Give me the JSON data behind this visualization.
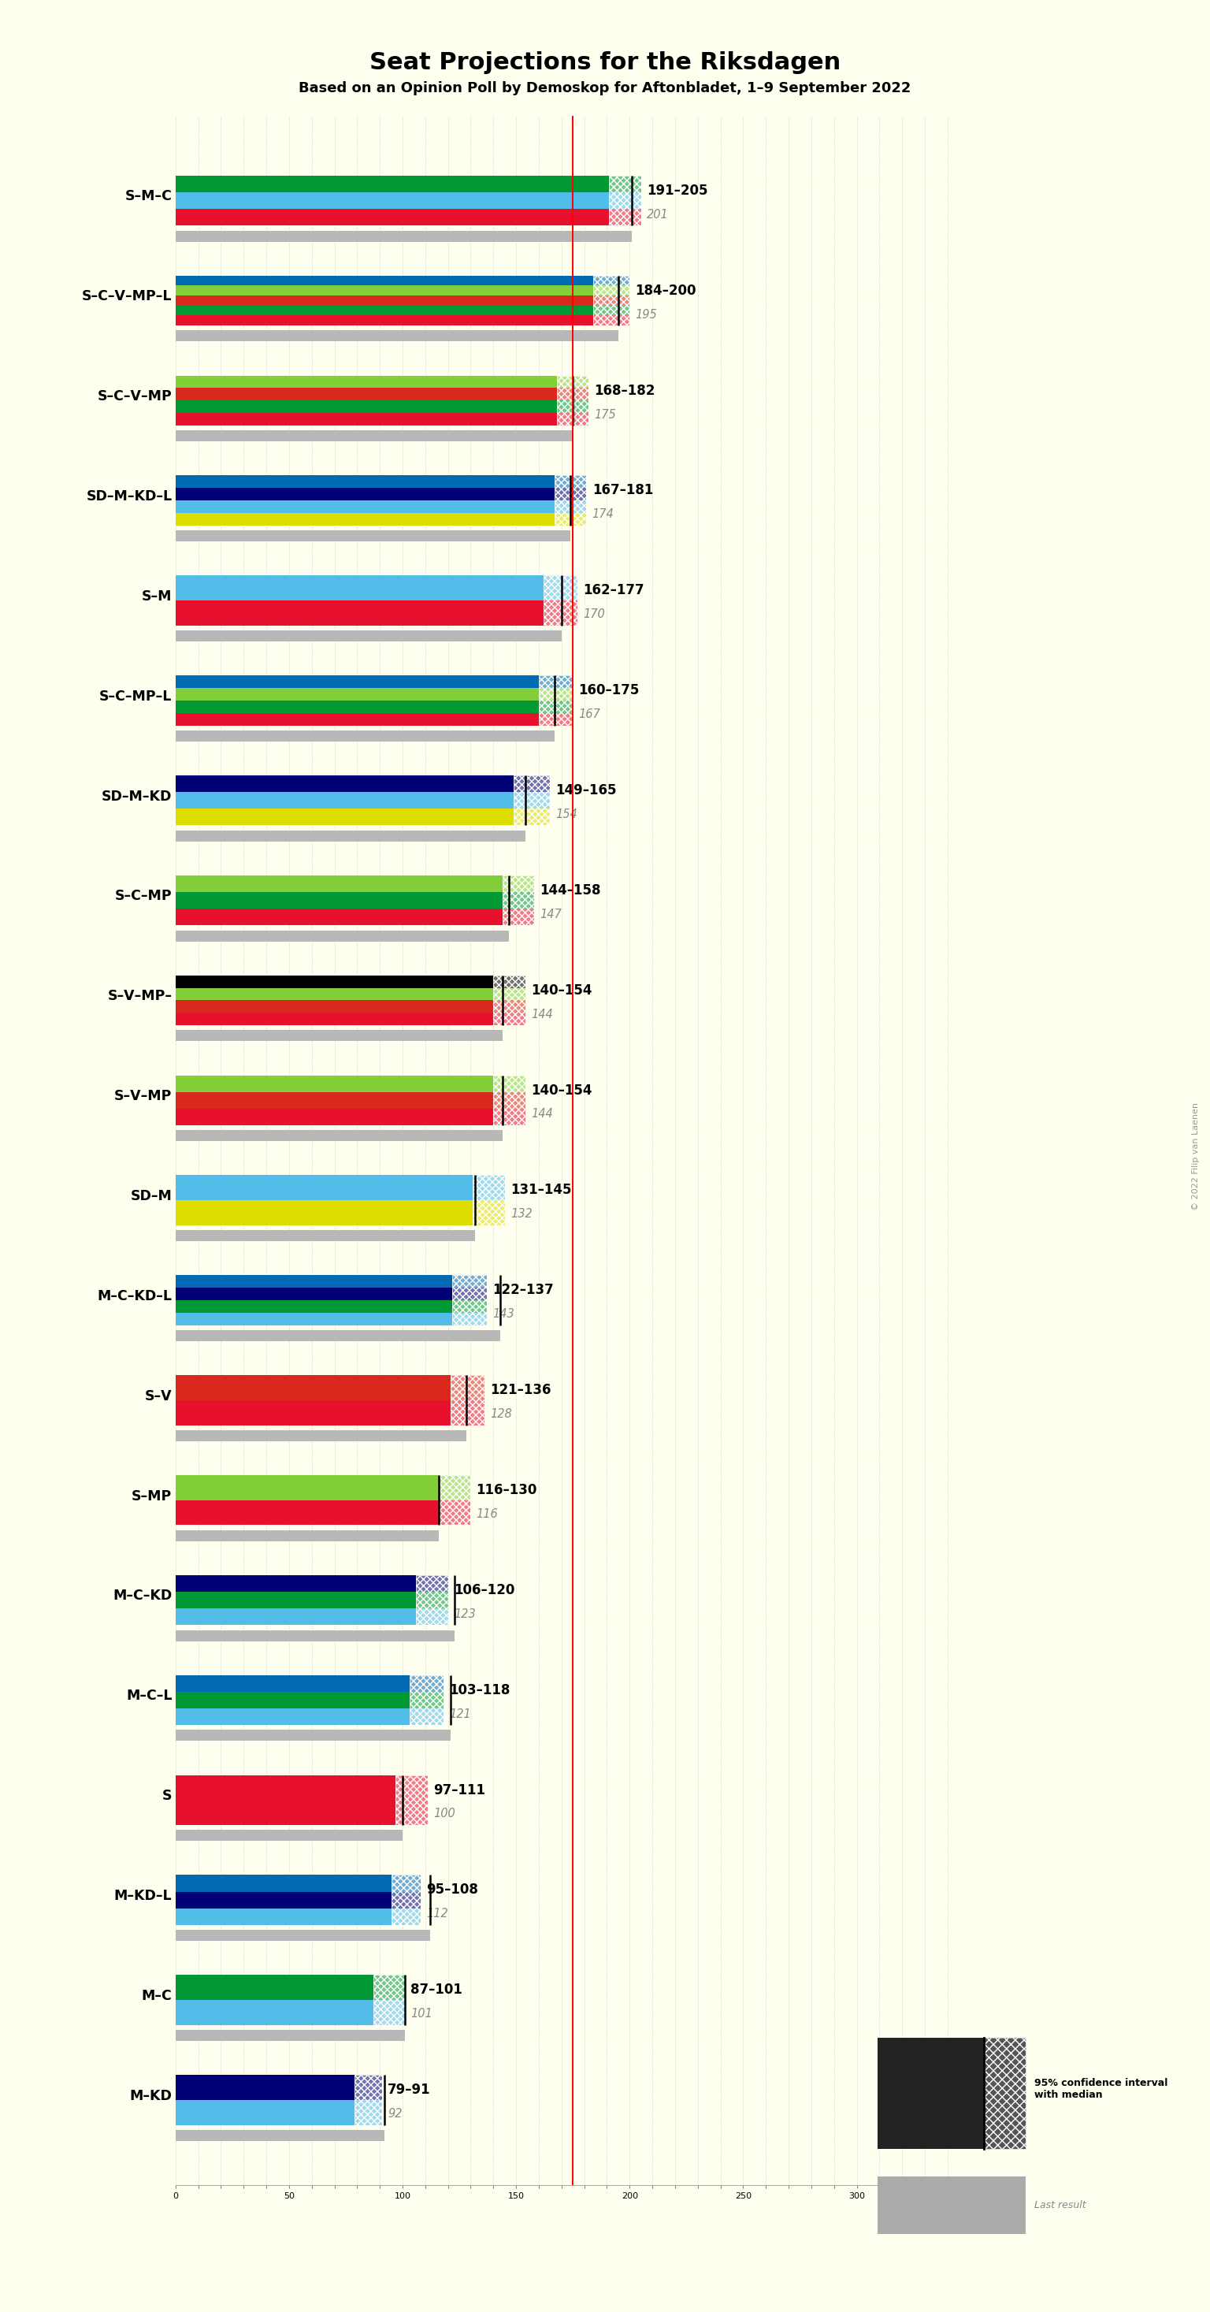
{
  "title": "Seat Projections for the Riksdagen",
  "subtitle": "Based on an Opinion Poll by Demoskop for Aftonbladet, 1–9 September 2022",
  "copyright": "© 2022 Filip van Laenen",
  "bg": "#fffff0",
  "majority": 175,
  "xlim_max": 349,
  "coalitions": [
    {
      "label": "S–M–C",
      "underline": false,
      "ci_low": 191,
      "ci_high": 205,
      "median": 201,
      "last": 201,
      "colors": [
        "#E8112d",
        "#52BDE8",
        "#009933"
      ]
    },
    {
      "label": "S–C–V–MP–L",
      "underline": false,
      "ci_low": 184,
      "ci_high": 200,
      "median": 195,
      "last": 195,
      "colors": [
        "#E8112d",
        "#009933",
        "#DA291C",
        "#83CF39",
        "#006AB3"
      ]
    },
    {
      "label": "S–C–V–MP",
      "underline": true,
      "ci_low": 168,
      "ci_high": 182,
      "median": 175,
      "last": 175,
      "colors": [
        "#E8112d",
        "#009933",
        "#DA291C",
        "#83CF39"
      ]
    },
    {
      "label": "SD–M–KD–L",
      "underline": false,
      "ci_low": 167,
      "ci_high": 181,
      "median": 174,
      "last": 174,
      "colors": [
        "#DDDD00",
        "#52BDE8",
        "#000077",
        "#006AB3"
      ]
    },
    {
      "label": "S–M",
      "underline": false,
      "ci_low": 162,
      "ci_high": 177,
      "median": 170,
      "last": 170,
      "colors": [
        "#E8112d",
        "#52BDE8"
      ]
    },
    {
      "label": "S–C–MP–L",
      "underline": false,
      "ci_low": 160,
      "ci_high": 175,
      "median": 167,
      "last": 167,
      "colors": [
        "#E8112d",
        "#009933",
        "#83CF39",
        "#006AB3"
      ]
    },
    {
      "label": "SD–M–KD",
      "underline": false,
      "ci_low": 149,
      "ci_high": 165,
      "median": 154,
      "last": 154,
      "colors": [
        "#DDDD00",
        "#52BDE8",
        "#000077"
      ]
    },
    {
      "label": "S–C–MP",
      "underline": false,
      "ci_low": 144,
      "ci_high": 158,
      "median": 147,
      "last": 147,
      "colors": [
        "#E8112d",
        "#009933",
        "#83CF39"
      ]
    },
    {
      "label": "S–V–MP–",
      "underline": false,
      "ci_low": 140,
      "ci_high": 154,
      "median": 144,
      "last": 144,
      "colors": [
        "#E8112d",
        "#DA291C",
        "#83CF39",
        "#000000"
      ]
    },
    {
      "label": "S–V–MP",
      "underline": false,
      "ci_low": 140,
      "ci_high": 154,
      "median": 144,
      "last": 144,
      "colors": [
        "#E8112d",
        "#DA291C",
        "#83CF39"
      ]
    },
    {
      "label": "SD–M",
      "underline": false,
      "ci_low": 131,
      "ci_high": 145,
      "median": 132,
      "last": 132,
      "colors": [
        "#DDDD00",
        "#52BDE8"
      ]
    },
    {
      "label": "M–C–KD–L",
      "underline": false,
      "ci_low": 122,
      "ci_high": 137,
      "median": 143,
      "last": 143,
      "colors": [
        "#52BDE8",
        "#009933",
        "#000077",
        "#006AB3"
      ]
    },
    {
      "label": "S–V",
      "underline": false,
      "ci_low": 121,
      "ci_high": 136,
      "median": 128,
      "last": 128,
      "colors": [
        "#E8112d",
        "#DA291C"
      ]
    },
    {
      "label": "S–MP",
      "underline": false,
      "ci_low": 116,
      "ci_high": 130,
      "median": 116,
      "last": 116,
      "colors": [
        "#E8112d",
        "#83CF39"
      ]
    },
    {
      "label": "M–C–KD",
      "underline": false,
      "ci_low": 106,
      "ci_high": 120,
      "median": 123,
      "last": 123,
      "colors": [
        "#52BDE8",
        "#009933",
        "#000077"
      ]
    },
    {
      "label": "M–C–L",
      "underline": false,
      "ci_low": 103,
      "ci_high": 118,
      "median": 121,
      "last": 121,
      "colors": [
        "#52BDE8",
        "#009933",
        "#006AB3"
      ]
    },
    {
      "label": "S",
      "underline": true,
      "ci_low": 97,
      "ci_high": 111,
      "median": 100,
      "last": 100,
      "colors": [
        "#E8112d"
      ]
    },
    {
      "label": "M–KD–L",
      "underline": false,
      "ci_low": 95,
      "ci_high": 108,
      "median": 112,
      "last": 112,
      "colors": [
        "#52BDE8",
        "#000077",
        "#006AB3"
      ]
    },
    {
      "label": "M–C",
      "underline": false,
      "ci_low": 87,
      "ci_high": 101,
      "median": 101,
      "last": 101,
      "colors": [
        "#52BDE8",
        "#009933"
      ]
    },
    {
      "label": "M–KD",
      "underline": false,
      "ci_low": 79,
      "ci_high": 91,
      "median": 92,
      "last": 92,
      "colors": [
        "#52BDE8",
        "#000077"
      ]
    }
  ]
}
